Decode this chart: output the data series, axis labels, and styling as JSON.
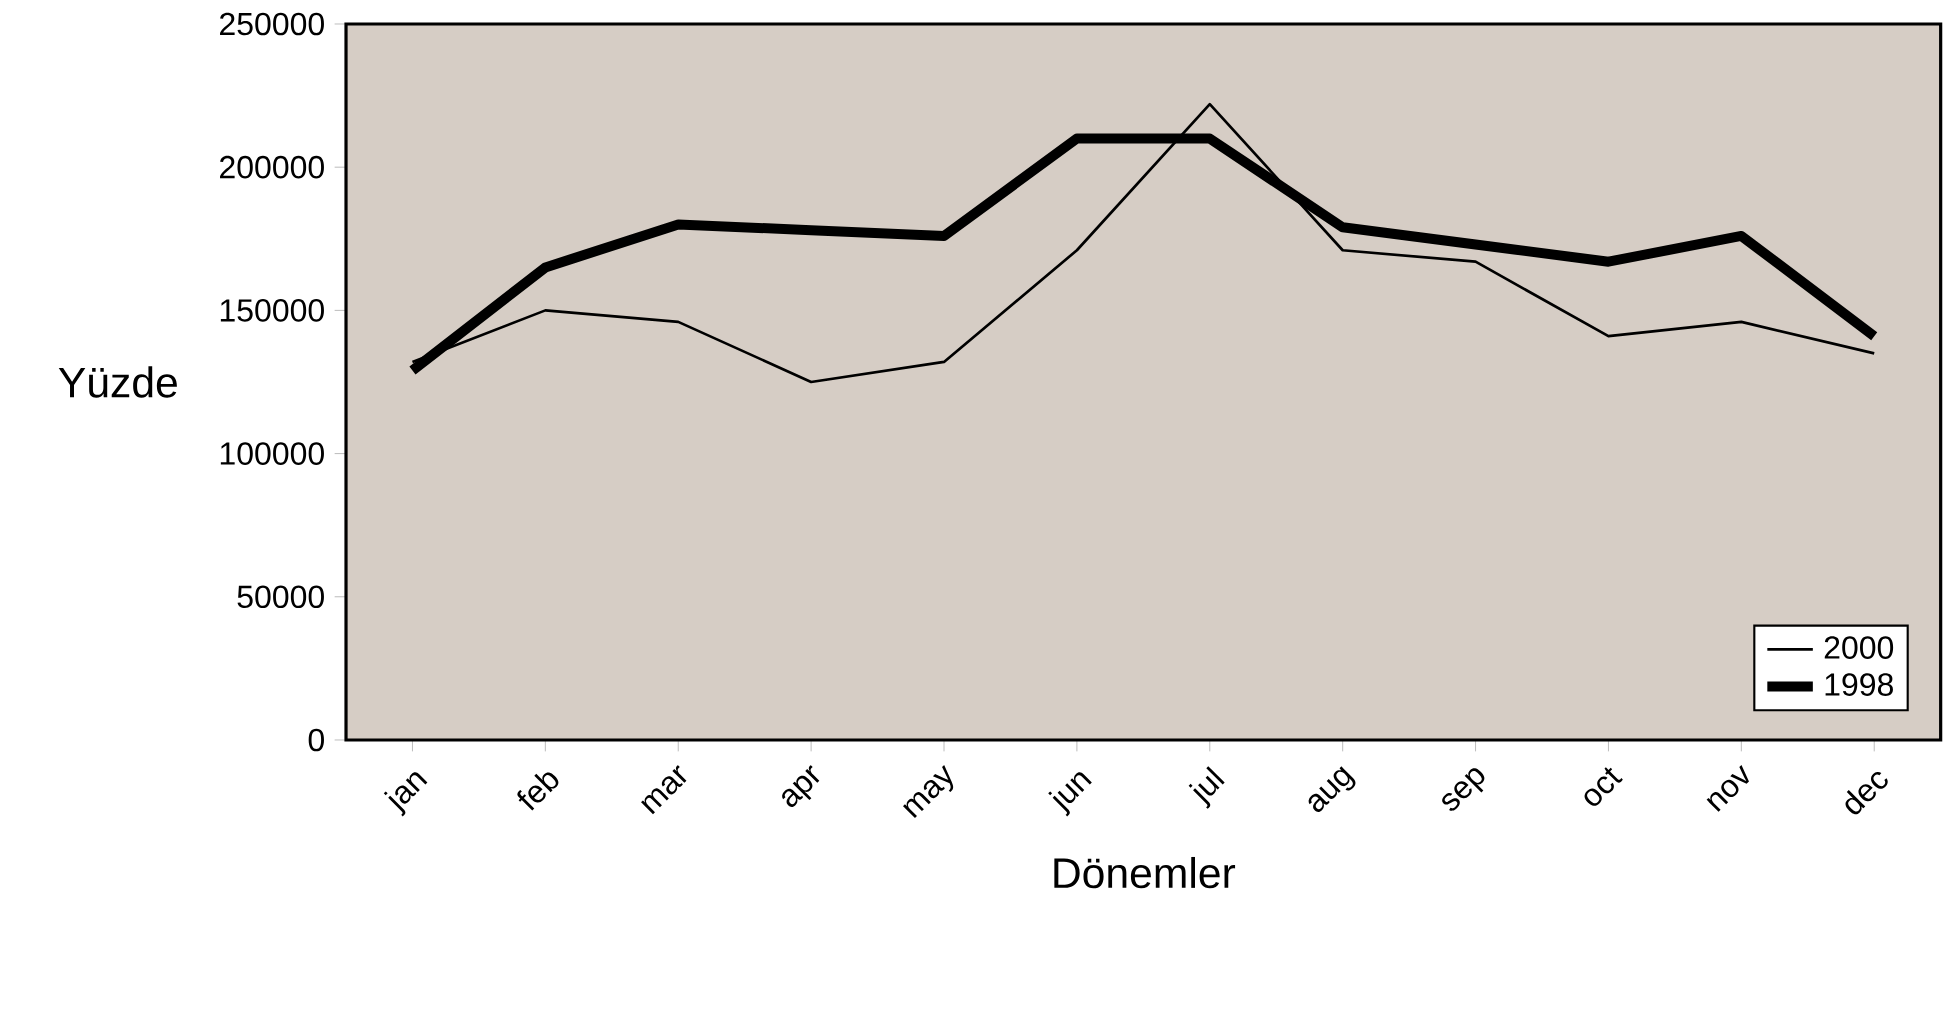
{
  "chart_data": {
    "type": "line",
    "xlabel": "Dönemler",
    "ylabel": "Yüzde",
    "categories": [
      "jan",
      "feb",
      "mar",
      "apr",
      "may",
      "jun",
      "jul",
      "aug",
      "sep",
      "oct",
      "nov",
      "dec"
    ],
    "series": [
      {
        "name": "2000",
        "color": "#000000",
        "values": [
          132000,
          150000,
          146000,
          125000,
          132000,
          171000,
          222000,
          171000,
          167000,
          141000,
          146000,
          135000
        ]
      },
      {
        "name": "1998",
        "color": "#000000",
        "values": [
          129000,
          165000,
          180000,
          178000,
          176000,
          210000,
          210000,
          179000,
          173000,
          167000,
          176000,
          141000
        ]
      }
    ],
    "ylim": [
      0,
      250000
    ],
    "yticks": [
      0,
      50000,
      100000,
      150000,
      200000,
      250000
    ],
    "grid": false,
    "legend": "bottom right",
    "marker": "none",
    "line_style": "solid"
  }
}
